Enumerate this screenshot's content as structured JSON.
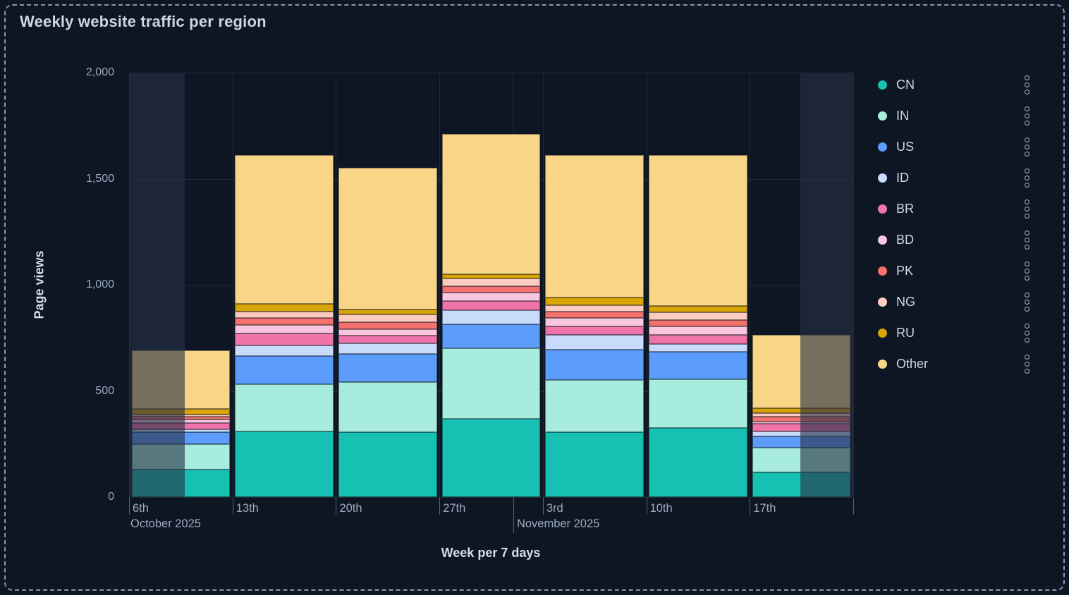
{
  "panel": {
    "title": "Weekly website traffic per region"
  },
  "y_axis": {
    "title": "Page views",
    "tick_labels": [
      "2,000",
      "1,500",
      "1,000",
      "500",
      "0"
    ]
  },
  "x_axis": {
    "title": "Week per 7 days",
    "day_labels": [
      "6th",
      "13th",
      "20th",
      "27th",
      "3rd",
      "10th",
      "17th"
    ],
    "month_labels": [
      "October 2025",
      "November 2025"
    ]
  },
  "colors": {
    "bg": "#0d1622",
    "panel_border": "#8397b1",
    "grid": "rgba(125,145,185,0.17)",
    "tick_label": "#9dabc0",
    "tick_mark": "#56647c",
    "axis_title": "#d7dee8",
    "title": "#ccd5e0",
    "legend_text": "#ced7e1",
    "offrange_overlay": "rgba(38,48,70,0.62)"
  },
  "chart_data": {
    "type": "bar",
    "stacked": true,
    "title": "Weekly website traffic per region",
    "xlabel": "Week per 7 days",
    "ylabel": "Page views",
    "ylim": [
      0,
      2000
    ],
    "grid": true,
    "legend_position": "right",
    "categories": [
      "6th October 2025",
      "13th October 2025",
      "20th October 2025",
      "27th October 2025",
      "3rd November 2025",
      "10th November 2025",
      "17th November 2025"
    ],
    "series": [
      {
        "name": "CN",
        "color": "#16c1b4",
        "values": [
          130,
          310,
          305,
          370,
          305,
          325,
          115
        ]
      },
      {
        "name": "IN",
        "color": "#a7ecdd",
        "values": [
          120,
          220,
          235,
          330,
          245,
          230,
          118
        ]
      },
      {
        "name": "US",
        "color": "#5c9cfa",
        "values": [
          55,
          135,
          135,
          115,
          145,
          130,
          52
        ]
      },
      {
        "name": "ID",
        "color": "#c8dbfb",
        "values": [
          15,
          50,
          50,
          65,
          70,
          35,
          25
        ]
      },
      {
        "name": "BR",
        "color": "#ee74aa",
        "values": [
          30,
          55,
          35,
          45,
          40,
          45,
          35
        ]
      },
      {
        "name": "BD",
        "color": "#fac6de",
        "values": [
          15,
          40,
          30,
          40,
          40,
          40,
          10
        ]
      },
      {
        "name": "PK",
        "color": "#f4726e",
        "values": [
          15,
          35,
          35,
          30,
          30,
          30,
          25
        ]
      },
      {
        "name": "NG",
        "color": "#fdccc0",
        "values": [
          10,
          30,
          35,
          35,
          30,
          35,
          15
        ]
      },
      {
        "name": "RU",
        "color": "#d9a406",
        "values": [
          25,
          35,
          25,
          20,
          35,
          30,
          25
        ]
      },
      {
        "name": "Other",
        "color": "#f9d687",
        "values": [
          275,
          700,
          665,
          660,
          670,
          710,
          345
        ]
      }
    ],
    "totals": [
      690,
      1610,
      1550,
      1710,
      1610,
      1610,
      765
    ]
  }
}
